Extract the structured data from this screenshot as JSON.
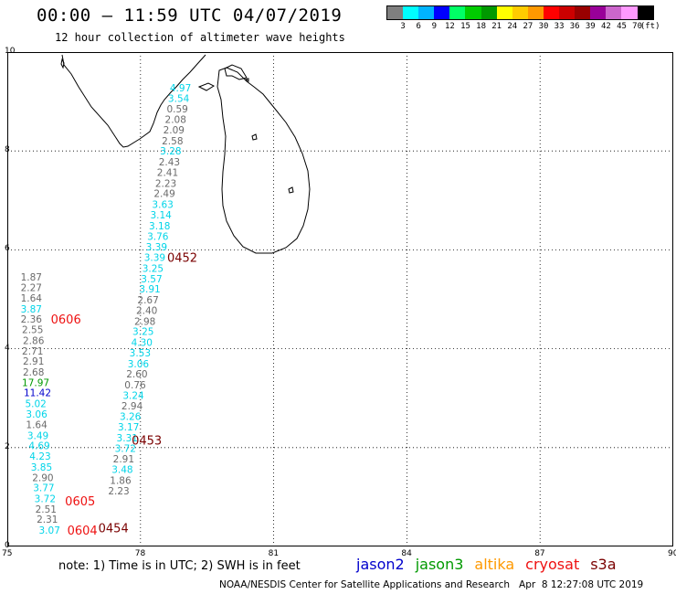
{
  "header": {
    "title": "00:00 – 11:59 UTC 04/07/2019",
    "subtitle": "12 hour collection of altimeter wave heights"
  },
  "colorbar": {
    "unit": "(ft)",
    "colors": [
      "#7f7f7f",
      "#00ffff",
      "#00b4ff",
      "#0000ff",
      "#00ff66",
      "#00cc00",
      "#009900",
      "#ffff00",
      "#ffcc00",
      "#ff9900",
      "#ff0000",
      "#cc0000",
      "#990000",
      "#990099",
      "#cc66cc",
      "#ff99ff",
      "#000000"
    ],
    "ticks": [
      "3",
      "6",
      "9",
      "12",
      "15",
      "18",
      "21",
      "24",
      "27",
      "30",
      "33",
      "36",
      "39",
      "42",
      "45",
      "70"
    ]
  },
  "axes": {
    "x_ticks": [
      "75",
      "78",
      "81",
      "84",
      "87",
      "90"
    ],
    "y_ticks": [
      "0",
      "2",
      "4",
      "6",
      "8",
      "10"
    ],
    "xlim": [
      75,
      90
    ],
    "ylim": [
      0,
      10
    ]
  },
  "colors": {
    "gray": "#6a6a6a",
    "cyan": "#00d4e8",
    "blue": "#0000cc",
    "green": "#009900",
    "red": "#ee1111",
    "darkred": "#7a0000",
    "orange": "#ff9900"
  },
  "track_a": [
    {
      "lon": 78.66,
      "lat": 9.28,
      "v": "4.97",
      "c": "cyan"
    },
    {
      "lon": 78.62,
      "lat": 9.07,
      "v": "3.54",
      "c": "cyan"
    },
    {
      "lon": 78.59,
      "lat": 8.85,
      "v": "0.59",
      "c": "gray"
    },
    {
      "lon": 78.55,
      "lat": 8.64,
      "v": "2.08",
      "c": "gray"
    },
    {
      "lon": 78.51,
      "lat": 8.43,
      "v": "2.09",
      "c": "gray"
    },
    {
      "lon": 78.48,
      "lat": 8.21,
      "v": "2.58",
      "c": "gray"
    },
    {
      "lon": 78.44,
      "lat": 8.0,
      "v": "3.28",
      "c": "cyan"
    },
    {
      "lon": 78.41,
      "lat": 7.78,
      "v": "2.43",
      "c": "gray"
    },
    {
      "lon": 78.37,
      "lat": 7.57,
      "v": "2.41",
      "c": "gray"
    },
    {
      "lon": 78.33,
      "lat": 7.35,
      "v": "2.23",
      "c": "gray"
    },
    {
      "lon": 78.3,
      "lat": 7.14,
      "v": "2.49",
      "c": "gray"
    },
    {
      "lon": 78.26,
      "lat": 6.92,
      "v": "3.63",
      "c": "cyan"
    },
    {
      "lon": 78.22,
      "lat": 6.71,
      "v": "3.14",
      "c": "cyan"
    },
    {
      "lon": 78.19,
      "lat": 6.49,
      "v": "3.18",
      "c": "cyan"
    },
    {
      "lon": 78.15,
      "lat": 6.28,
      "v": "3.76",
      "c": "cyan"
    },
    {
      "lon": 78.12,
      "lat": 6.06,
      "v": "3.39",
      "c": "cyan"
    },
    {
      "lon": 78.08,
      "lat": 5.85,
      "v": "3.39",
      "c": "cyan"
    },
    {
      "lon": 78.04,
      "lat": 5.63,
      "v": "3.25",
      "c": "cyan"
    },
    {
      "lon": 78.01,
      "lat": 5.42,
      "v": "3.57",
      "c": "cyan"
    },
    {
      "lon": 77.97,
      "lat": 5.21,
      "v": "3.91",
      "c": "cyan"
    },
    {
      "lon": 77.93,
      "lat": 4.99,
      "v": "2.67",
      "c": "gray"
    },
    {
      "lon": 77.9,
      "lat": 4.78,
      "v": "2.40",
      "c": "gray"
    },
    {
      "lon": 77.86,
      "lat": 4.56,
      "v": "2.98",
      "c": "gray"
    },
    {
      "lon": 77.82,
      "lat": 4.35,
      "v": "3.25",
      "c": "cyan"
    },
    {
      "lon": 77.79,
      "lat": 4.13,
      "v": "4.30",
      "c": "cyan"
    },
    {
      "lon": 77.75,
      "lat": 3.92,
      "v": "3.53",
      "c": "cyan"
    },
    {
      "lon": 77.71,
      "lat": 3.7,
      "v": "3.06",
      "c": "cyan"
    },
    {
      "lon": 77.68,
      "lat": 3.49,
      "v": "2.60",
      "c": "gray"
    },
    {
      "lon": 77.64,
      "lat": 3.27,
      "v": "0.76",
      "c": "gray"
    },
    {
      "lon": 77.6,
      "lat": 3.06,
      "v": "3.24",
      "c": "cyan"
    },
    {
      "lon": 77.57,
      "lat": 2.85,
      "v": "2.94",
      "c": "gray"
    },
    {
      "lon": 77.53,
      "lat": 2.63,
      "v": "3.26",
      "c": "cyan"
    },
    {
      "lon": 77.49,
      "lat": 2.42,
      "v": "3.17",
      "c": "cyan"
    },
    {
      "lon": 77.46,
      "lat": 2.2,
      "v": "3.31",
      "c": "cyan"
    },
    {
      "lon": 77.42,
      "lat": 1.99,
      "v": "3.72",
      "c": "cyan"
    },
    {
      "lon": 77.38,
      "lat": 1.77,
      "v": "2.91",
      "c": "gray"
    },
    {
      "lon": 77.35,
      "lat": 1.56,
      "v": "3.48",
      "c": "cyan"
    },
    {
      "lon": 77.31,
      "lat": 1.34,
      "v": "1.86",
      "c": "gray"
    },
    {
      "lon": 77.27,
      "lat": 1.13,
      "v": "2.23",
      "c": "gray"
    }
  ],
  "track_b": [
    {
      "lon": 75.3,
      "lat": 5.45,
      "v": "1.87",
      "c": "gray"
    },
    {
      "lon": 75.3,
      "lat": 5.24,
      "v": "2.27",
      "c": "gray"
    },
    {
      "lon": 75.3,
      "lat": 5.03,
      "v": "1.64",
      "c": "gray"
    },
    {
      "lon": 75.3,
      "lat": 4.81,
      "v": "3.87",
      "c": "cyan"
    },
    {
      "lon": 75.3,
      "lat": 4.6,
      "v": "2.36",
      "c": "gray"
    },
    {
      "lon": 75.33,
      "lat": 4.39,
      "v": "2.55",
      "c": "gray"
    },
    {
      "lon": 75.35,
      "lat": 4.17,
      "v": "2.86",
      "c": "gray"
    },
    {
      "lon": 75.33,
      "lat": 3.96,
      "v": "2.71",
      "c": "gray"
    },
    {
      "lon": 75.35,
      "lat": 3.75,
      "v": "2.91",
      "c": "gray"
    },
    {
      "lon": 75.35,
      "lat": 3.53,
      "v": "2.68",
      "c": "gray"
    },
    {
      "lon": 75.33,
      "lat": 3.32,
      "v": "17.97",
      "c": "green"
    },
    {
      "lon": 75.37,
      "lat": 3.11,
      "v": "11.42",
      "c": "blue"
    },
    {
      "lon": 75.4,
      "lat": 2.89,
      "v": "5.02",
      "c": "cyan"
    },
    {
      "lon": 75.42,
      "lat": 2.68,
      "v": "3.06",
      "c": "cyan"
    },
    {
      "lon": 75.42,
      "lat": 2.47,
      "v": "1.64",
      "c": "gray"
    },
    {
      "lon": 75.45,
      "lat": 2.25,
      "v": "3.49",
      "c": "cyan"
    },
    {
      "lon": 75.48,
      "lat": 2.04,
      "v": "4.69",
      "c": "cyan"
    },
    {
      "lon": 75.5,
      "lat": 1.83,
      "v": "4.23",
      "c": "cyan"
    },
    {
      "lon": 75.53,
      "lat": 1.61,
      "v": "3.85",
      "c": "cyan"
    },
    {
      "lon": 75.56,
      "lat": 1.4,
      "v": "2.90",
      "c": "gray"
    },
    {
      "lon": 75.58,
      "lat": 1.19,
      "v": "3.77",
      "c": "cyan"
    },
    {
      "lon": 75.61,
      "lat": 0.97,
      "v": "3.72",
      "c": "cyan"
    },
    {
      "lon": 75.63,
      "lat": 0.76,
      "v": "2.51",
      "c": "gray"
    },
    {
      "lon": 75.66,
      "lat": 0.55,
      "v": "2.31",
      "c": "gray"
    },
    {
      "lon": 75.71,
      "lat": 0.33,
      "v": "3.07",
      "c": "cyan"
    }
  ],
  "time_labels": [
    {
      "lon": 78.6,
      "lat": 5.85,
      "t": "0452",
      "c": "darkred"
    },
    {
      "lon": 75.98,
      "lat": 4.6,
      "t": "0606",
      "c": "red"
    },
    {
      "lon": 77.8,
      "lat": 2.15,
      "t": "0453",
      "c": "darkred"
    },
    {
      "lon": 76.3,
      "lat": 0.92,
      "t": "0605",
      "c": "red"
    },
    {
      "lon": 76.35,
      "lat": 0.33,
      "t": "0604",
      "c": "red"
    },
    {
      "lon": 77.05,
      "lat": 0.38,
      "t": "0454",
      "c": "darkred"
    }
  ],
  "note": "note: 1) Time is in UTC; 2) SWH is in feet",
  "legend": [
    {
      "label": "jason2",
      "color": "#0000cc"
    },
    {
      "label": "jason3",
      "color": "#009900"
    },
    {
      "label": "altika",
      "color": "#ff9900"
    },
    {
      "label": "cryosat",
      "color": "#ee1111"
    },
    {
      "label": "s3a",
      "color": "#7a0000"
    }
  ],
  "credit": "NOAA/NESDIS Center for Satellite Applications and Research   Apr  8 12:27:08 UTC 2019"
}
